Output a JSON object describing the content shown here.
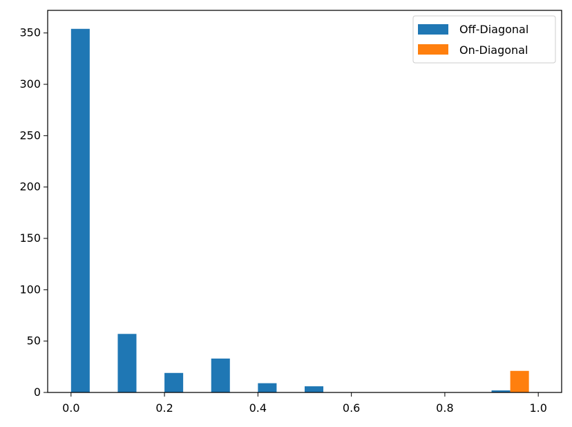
{
  "chart_data": {
    "type": "bar",
    "xlim": [
      -0.05,
      1.05
    ],
    "ylim": [
      0,
      372
    ],
    "xticks": [
      0.0,
      0.2,
      0.4,
      0.6,
      0.8,
      1.0
    ],
    "yticks": [
      0,
      50,
      100,
      150,
      200,
      250,
      300,
      350
    ],
    "xtick_labels": [
      "0.0",
      "0.2",
      "0.4",
      "0.6",
      "0.8",
      "1.0"
    ],
    "ytick_labels": [
      "0",
      "50",
      "100",
      "150",
      "200",
      "250",
      "300",
      "350"
    ],
    "grid": false,
    "legend_position": "top-right",
    "bin_edges": [
      0.0,
      0.1,
      0.2,
      0.3,
      0.4,
      0.5,
      0.6,
      0.7,
      0.8,
      0.9,
      1.0
    ],
    "series": [
      {
        "name": "Off-Diagonal",
        "color": "#1f77b4",
        "values": [
          354,
          57,
          19,
          33,
          9,
          6,
          0,
          0,
          0,
          2
        ]
      },
      {
        "name": "On-Diagonal",
        "color": "#ff7f0e",
        "values": [
          0,
          0,
          0,
          0,
          0,
          0,
          0,
          0,
          0,
          21
        ]
      }
    ]
  }
}
